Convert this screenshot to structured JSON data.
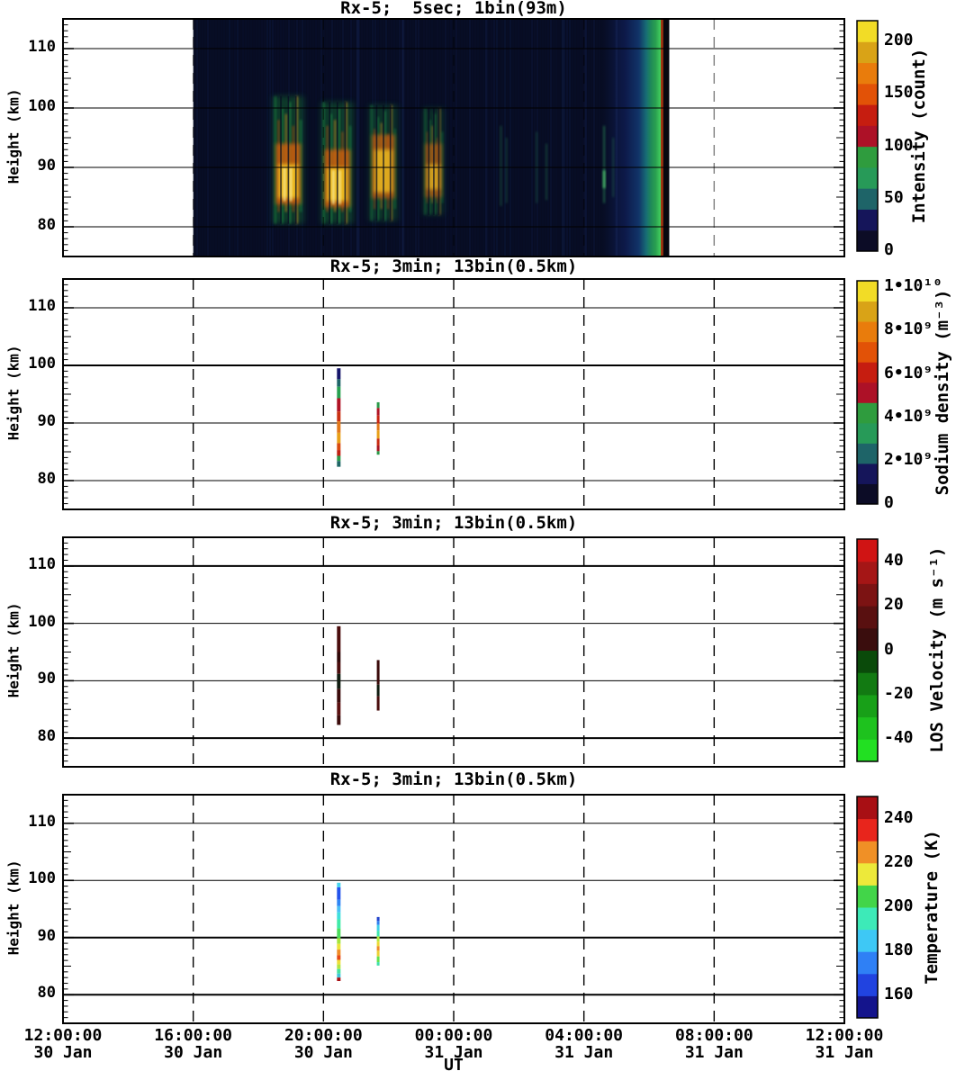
{
  "chart_data": {
    "type": "heatmap",
    "xlabel": "UT",
    "ylabel": "Height (km)",
    "x_range_hours": [
      0,
      24
    ],
    "y_range_km": [
      75,
      115
    ],
    "y_ticks": [
      110,
      100,
      90,
      80
    ],
    "x_ticks": [
      {
        "time": "12:00:00",
        "date": "30 Jan"
      },
      {
        "time": "16:00:00",
        "date": "30 Jan"
      },
      {
        "time": "20:00:00",
        "date": "30 Jan"
      },
      {
        "time": "00:00:00",
        "date": "31 Jan"
      },
      {
        "time": "04:00:00",
        "date": "31 Jan"
      },
      {
        "time": "08:00:00",
        "date": "31 Jan"
      },
      {
        "time": "12:00:00",
        "date": "31 Jan"
      }
    ],
    "grid": {
      "vertical_dashed_hours": [
        4,
        8,
        12,
        16,
        20
      ],
      "horizontal_solid_km": [
        110,
        100,
        90,
        80
      ]
    },
    "panels": [
      {
        "title": "Rx-5;  5sec; 1bin(93m)",
        "colorbar": {
          "unit": "Intensity (count)",
          "range": [
            0,
            220
          ],
          "ticks": [
            {
              "v": 0,
              "label": "0"
            },
            {
              "v": 50,
              "label": "50"
            },
            {
              "v": 100,
              "label": "100"
            },
            {
              "v": 150,
              "label": "150"
            },
            {
              "v": 200,
              "label": "200"
            }
          ],
          "colors": [
            "#0c0c26",
            "#15155a",
            "#1e6468",
            "#279a58",
            "#2f9c3e",
            "#ad1127",
            "#c61d10",
            "#e25207",
            "#e97c0c",
            "#d9a317",
            "#f2dc26"
          ]
        },
        "background": "#070c22",
        "data_window_hours": [
          4.0,
          18.62
        ],
        "sunrise_start_hour": 16.55,
        "sunrise_stops": [
          [
            0,
            "#070c22"
          ],
          [
            0.35,
            "#0d1a4a"
          ],
          [
            0.55,
            "#113468"
          ],
          [
            0.66,
            "#176d75"
          ],
          [
            0.73,
            "#1f8a58"
          ],
          [
            0.8,
            "#2aa050"
          ],
          [
            0.86,
            "#3ec85c"
          ],
          [
            0.873,
            "#3ecc58"
          ],
          [
            0.877,
            "#a83812"
          ],
          [
            0.91,
            "#8a2c0e"
          ],
          [
            0.916,
            "#07070f"
          ],
          [
            1,
            "#07070f"
          ]
        ],
        "clusters": [
          {
            "t0": 6.44,
            "t1": 7.4,
            "h_top": 102,
            "h_bot": 80.5,
            "core_top": 94,
            "core_bot": 83.8,
            "hot_top": 90.5,
            "hot_bot": 84.8,
            "strength": 1.0
          },
          {
            "t0": 7.93,
            "t1": 8.92,
            "h_top": 101,
            "h_bot": 80.5,
            "core_top": 93,
            "core_bot": 83.3,
            "hot_top": 90,
            "hot_bot": 84.3,
            "strength": 1.0
          },
          {
            "t0": 9.4,
            "t1": 10.28,
            "h_top": 100.5,
            "h_bot": 81,
            "core_top": 95.5,
            "core_bot": 84.8,
            "hot_top": 93,
            "hot_bot": 85.8,
            "strength": 0.85
          },
          {
            "t0": 11.06,
            "t1": 11.7,
            "h_top": 100,
            "h_bot": 82,
            "core_top": 94,
            "core_bot": 85,
            "hot_top": 90.5,
            "hot_bot": 86.3,
            "strength": 0.72
          }
        ],
        "wisps": [
          {
            "t": 13.45,
            "h_top": 97,
            "h_bot": 83.5,
            "opacity": 0.35
          },
          {
            "t": 13.62,
            "h_top": 95,
            "h_bot": 84,
            "opacity": 0.3
          },
          {
            "t": 14.55,
            "h_top": 96,
            "h_bot": 84,
            "opacity": 0.3
          },
          {
            "t": 14.85,
            "h_top": 94,
            "h_bot": 84.5,
            "opacity": 0.35
          },
          {
            "t": 16.62,
            "h_top": 97,
            "h_bot": 84,
            "opacity": 0.55,
            "bright": true
          },
          {
            "t": 16.9,
            "h_top": 95,
            "h_bot": 85,
            "opacity": 0.3
          }
        ],
        "noise_columns": [
          {
            "t": 9.05,
            "opacity": 0.2
          },
          {
            "t": 10.45,
            "opacity": 0.16
          },
          {
            "t": 13.0,
            "opacity": 0.13
          },
          {
            "t": 15.35,
            "opacity": 0.15
          },
          {
            "t": 16.05,
            "opacity": 0.13
          },
          {
            "t": 17.0,
            "opacity": 0.16
          }
        ]
      },
      {
        "title": "Rx-5; 3min; 13bin(0.5km)",
        "colorbar": {
          "unit": "Sodium density (m⁻³)",
          "range": [
            0,
            10300000000
          ],
          "ticks": [
            {
              "v": 0,
              "label": "0"
            },
            {
              "v": 2000000000.0,
              "label": "2•10⁹"
            },
            {
              "v": 4000000000.0,
              "label": "4•10⁹"
            },
            {
              "v": 6000000000.0,
              "label": "6•10⁹"
            },
            {
              "v": 8000000000.0,
              "label": "8•10⁹"
            },
            {
              "v": 10000000000.0,
              "label": "1•10¹⁰"
            }
          ],
          "colors": [
            "#0c0c26",
            "#15155a",
            "#1e6468",
            "#279a58",
            "#2f9c3e",
            "#ad1127",
            "#c61d10",
            "#e25207",
            "#e97c0c",
            "#d9a317",
            "#f2dc26"
          ]
        },
        "strips": [
          {
            "t": 8.47,
            "w": 4,
            "segments": [
              [
                99.5,
                97.6,
                "#15156a"
              ],
              [
                97.6,
                96.3,
                "#1e6468"
              ],
              [
                96.3,
                94.3,
                "#27a050"
              ],
              [
                94.3,
                92.0,
                "#b01224"
              ],
              [
                92.0,
                90.3,
                "#c93012"
              ],
              [
                90.3,
                88.3,
                "#e2781a"
              ],
              [
                88.3,
                86.5,
                "#e8a018"
              ],
              [
                86.5,
                85.3,
                "#d84a10"
              ],
              [
                85.3,
                84.3,
                "#c02012"
              ],
              [
                84.3,
                83.4,
                "#2a9a4a"
              ],
              [
                83.4,
                82.4,
                "#1e6666"
              ]
            ]
          },
          {
            "t": 9.68,
            "w": 3,
            "segments": [
              [
                93.6,
                92.6,
                "#2a9a4a"
              ],
              [
                92.6,
                91.3,
                "#b01424"
              ],
              [
                91.3,
                89.9,
                "#c82410"
              ],
              [
                89.9,
                88.7,
                "#e2781a"
              ],
              [
                88.7,
                87.3,
                "#e8a018"
              ],
              [
                87.3,
                86.1,
                "#c82a10"
              ],
              [
                86.1,
                85.1,
                "#a81420"
              ],
              [
                85.1,
                84.5,
                "#2a9a4a"
              ]
            ]
          }
        ]
      },
      {
        "title": "Rx-5; 3min; 13bin(0.5km)",
        "colorbar": {
          "unit": "LOS Velocity (m s⁻¹)",
          "range": [
            -50,
            50
          ],
          "ticks": [
            {
              "v": -40,
              "label": "-40"
            },
            {
              "v": -20,
              "label": "-20"
            },
            {
              "v": 0,
              "label": "0"
            },
            {
              "v": 20,
              "label": "20"
            },
            {
              "v": 40,
              "label": "40"
            }
          ],
          "colors": [
            "#22e022",
            "#1ec21e",
            "#18a018",
            "#127a12",
            "#0a4a0a",
            "#3a0d0d",
            "#591010",
            "#7c1313",
            "#a51616",
            "#d01414"
          ]
        },
        "strips": [
          {
            "t": 8.47,
            "w": 4,
            "segments": [
              [
                99.5,
                95.0,
                "#4a0d0d"
              ],
              [
                95.0,
                93.2,
                "#300808"
              ],
              [
                93.2,
                91.2,
                "#4a0d0d"
              ],
              [
                91.2,
                88.6,
                "#101c10"
              ],
              [
                88.6,
                86.2,
                "#3a0a0a"
              ],
              [
                86.2,
                84.0,
                "#5a1010"
              ],
              [
                84.0,
                82.3,
                "#3a0a0a"
              ]
            ]
          },
          {
            "t": 9.68,
            "w": 3,
            "segments": [
              [
                93.6,
                89.3,
                "#3a0a0a"
              ],
              [
                89.3,
                87.3,
                "#101c10"
              ],
              [
                87.3,
                84.8,
                "#4a0d0d"
              ]
            ]
          }
        ]
      },
      {
        "title": "Rx-5; 3min; 13bin(0.5km)",
        "colorbar": {
          "unit": "Temperature (K)",
          "range": [
            150,
            250
          ],
          "ticks": [
            {
              "v": 160,
              "label": "160"
            },
            {
              "v": 180,
              "label": "180"
            },
            {
              "v": 200,
              "label": "200"
            },
            {
              "v": 220,
              "label": "220"
            },
            {
              "v": 240,
              "label": "240"
            }
          ],
          "colors": [
            "#14148c",
            "#2143e0",
            "#2f80f5",
            "#3ec8f5",
            "#3deab8",
            "#42d549",
            "#ede93a",
            "#f09026",
            "#e8251c",
            "#a80f14"
          ]
        },
        "strips": [
          {
            "t": 8.47,
            "w": 4,
            "segments": [
              [
                99.6,
                98.8,
                "#44d5ee"
              ],
              [
                98.8,
                96.6,
                "#2353ec"
              ],
              [
                96.6,
                95.5,
                "#2f85f5"
              ],
              [
                95.5,
                94.4,
                "#49c0f5"
              ],
              [
                94.4,
                93.2,
                "#3fe0dc"
              ],
              [
                93.2,
                91.6,
                "#3feaa8"
              ],
              [
                91.6,
                89.9,
                "#4cdd5c"
              ],
              [
                89.9,
                88.9,
                "#a5e63c"
              ],
              [
                88.9,
                87.9,
                "#ece43a"
              ],
              [
                87.9,
                86.9,
                "#f08c26"
              ],
              [
                86.9,
                86.1,
                "#e84816"
              ],
              [
                86.1,
                85.3,
                "#eede38"
              ],
              [
                85.3,
                84.5,
                "#b2e642"
              ],
              [
                84.5,
                83.7,
                "#45e2a0"
              ],
              [
                83.7,
                83.0,
                "#3fc6dc"
              ],
              [
                83.0,
                82.4,
                "#a81014"
              ]
            ]
          },
          {
            "t": 9.68,
            "w": 3,
            "segments": [
              [
                93.6,
                92.9,
                "#2244cc"
              ],
              [
                92.9,
                92.2,
                "#2f80f0"
              ],
              [
                92.2,
                91.2,
                "#3fd0e8"
              ],
              [
                91.2,
                90.2,
                "#3fe8b0"
              ],
              [
                90.2,
                89.3,
                "#b8e83c"
              ],
              [
                89.3,
                88.5,
                "#ecd934"
              ],
              [
                88.5,
                87.7,
                "#f08c26"
              ],
              [
                87.7,
                86.7,
                "#ecd034"
              ],
              [
                86.7,
                85.7,
                "#62e24e"
              ],
              [
                85.7,
                85.1,
                "#3fe0a8"
              ]
            ]
          }
        ]
      }
    ]
  }
}
